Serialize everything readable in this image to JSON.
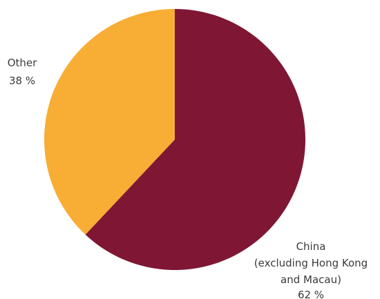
{
  "chart_data": {
    "type": "pie",
    "title": "",
    "slices": [
      {
        "name": "China (excluding Hong Kong and Macau)",
        "label_lines": [
          "China",
          "(excluding Hong Kong",
          "and Macau)"
        ],
        "value": 62,
        "value_label": "62 %",
        "color": "#7f1734"
      },
      {
        "name": "Other",
        "label_lines": [
          "Other"
        ],
        "value": 38,
        "value_label": "38 %",
        "color": "#f8ad35"
      }
    ],
    "start_angle": "12 o'clock",
    "direction": "clockwise",
    "legend": "none"
  }
}
